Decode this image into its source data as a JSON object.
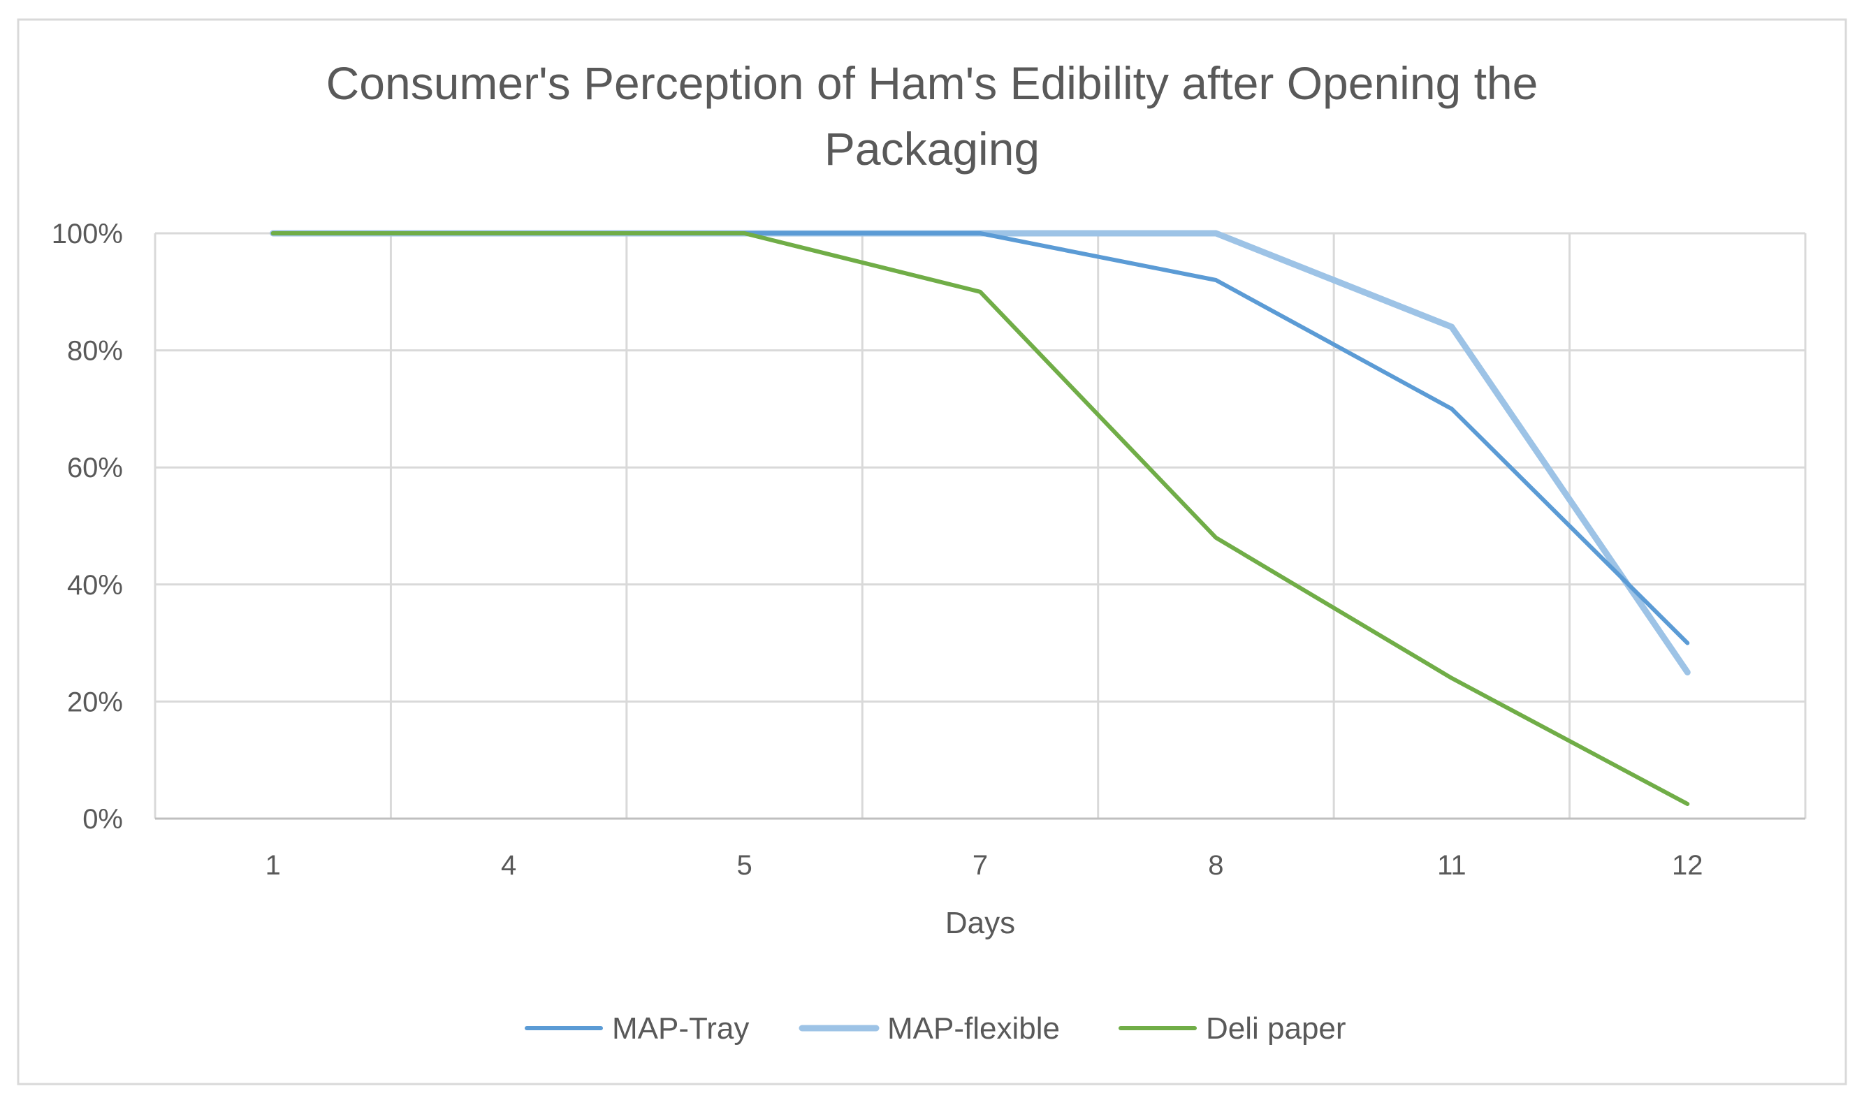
{
  "chart_data": {
    "type": "line",
    "title_lines": [
      "Consumer's Perception of Ham's Edibility after Opening the",
      "Packaging"
    ],
    "title": "Consumer's Perception of Ham's Edibility after Opening the Packaging",
    "xlabel": "Days",
    "ylabel": "",
    "categories": [
      "1",
      "4",
      "5",
      "7",
      "8",
      "11",
      "12"
    ],
    "ylim": [
      0,
      100
    ],
    "y_ticks": [
      0,
      20,
      40,
      60,
      80,
      100
    ],
    "y_tick_labels": [
      "0%",
      "20%",
      "40%",
      "60%",
      "80%",
      "100%"
    ],
    "grid": true,
    "legend_position": "bottom",
    "series": [
      {
        "name": "MAP-Tray",
        "color": "#5b9bd5",
        "values": [
          100,
          100,
          100,
          100,
          92,
          70,
          30
        ]
      },
      {
        "name": "MAP-flexible",
        "color": "#9dc3e6",
        "values": [
          100,
          100,
          100,
          100,
          100,
          84,
          25
        ]
      },
      {
        "name": "Deli paper",
        "color": "#70ad47",
        "values": [
          100,
          100,
          100,
          90,
          48,
          24,
          2.5
        ]
      }
    ]
  }
}
